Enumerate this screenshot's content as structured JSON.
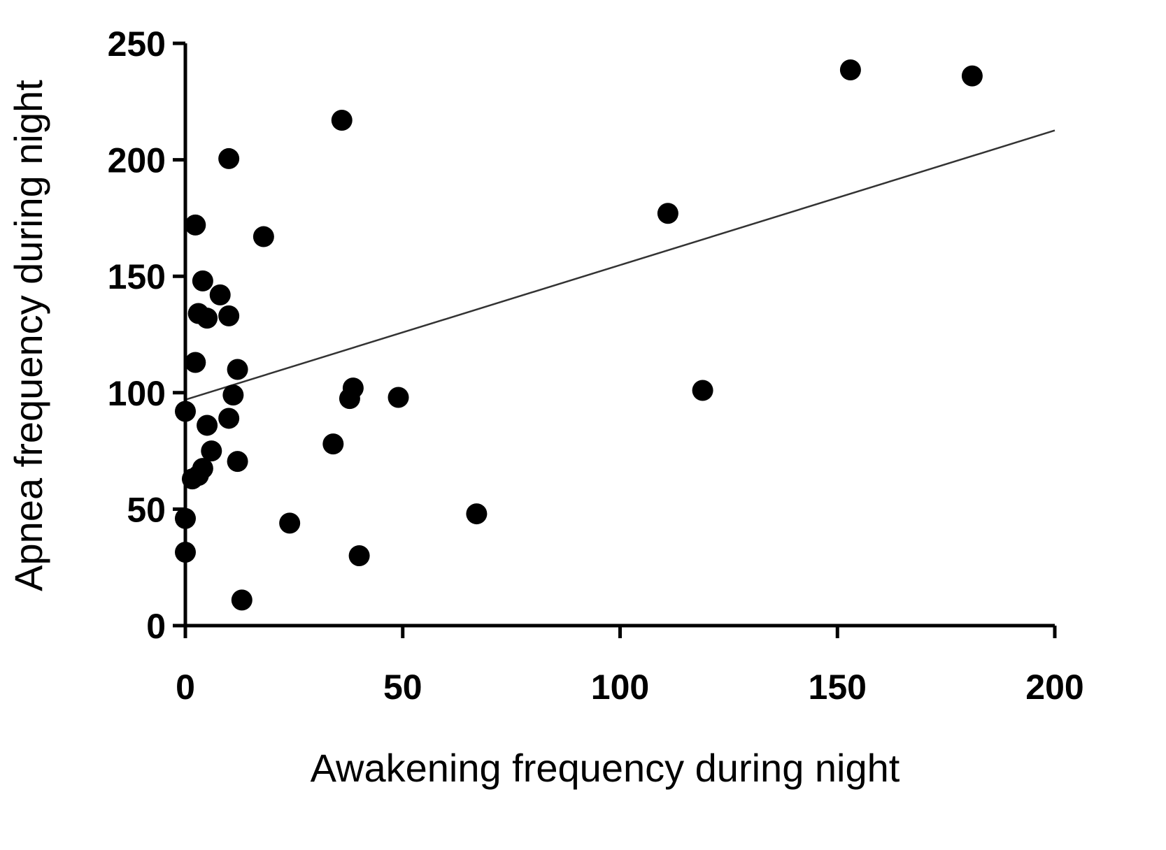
{
  "chart_data": {
    "type": "scatter",
    "title": "",
    "xlabel": "Awakening frequency during night",
    "ylabel": "Apnea frequency during night",
    "xlim": [
      0,
      200
    ],
    "ylim": [
      0,
      250
    ],
    "xticks": [
      "0",
      "50",
      "100",
      "150",
      "200"
    ],
    "yticks": [
      "0",
      "50",
      "100",
      "150",
      "200",
      "250"
    ],
    "grid": false,
    "point_color": "#000000",
    "points": [
      [
        153,
        238.6
      ],
      [
        181,
        236
      ],
      [
        36,
        217
      ],
      [
        10,
        200.5
      ],
      [
        111,
        177
      ],
      [
        2.3,
        172
      ],
      [
        18,
        167
      ],
      [
        4,
        148
      ],
      [
        8,
        142
      ],
      [
        3,
        134
      ],
      [
        5,
        132
      ],
      [
        10,
        133
      ],
      [
        2.3,
        113
      ],
      [
        12,
        110
      ],
      [
        11,
        99
      ],
      [
        10,
        89
      ],
      [
        5,
        86
      ],
      [
        0,
        92
      ],
      [
        38.6,
        102
      ],
      [
        37.8,
        97.5
      ],
      [
        49,
        98
      ],
      [
        119,
        101
      ],
      [
        34,
        78
      ],
      [
        6,
        75
      ],
      [
        12,
        70.5
      ],
      [
        4,
        67.5
      ],
      [
        3,
        64.5
      ],
      [
        1.6,
        63
      ],
      [
        24,
        44
      ],
      [
        0,
        46
      ],
      [
        67,
        48
      ],
      [
        0,
        31.5
      ],
      [
        40,
        30
      ],
      [
        13,
        11
      ]
    ],
    "regression_line": {
      "intercept": 97,
      "slope": 0.578
    }
  }
}
